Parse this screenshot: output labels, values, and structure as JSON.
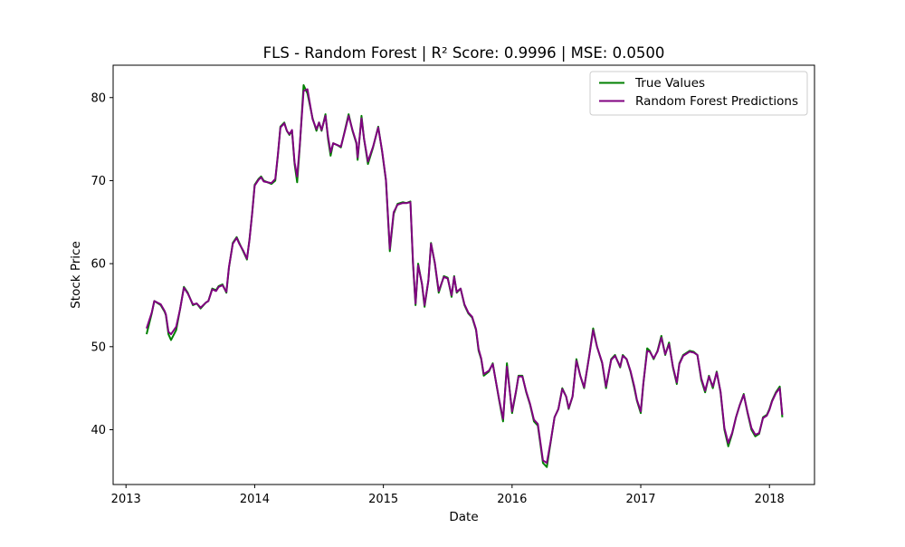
{
  "chart_data": {
    "type": "line",
    "title": "FLS - Random Forest | R² Score: 0.9996 | MSE: 0.0500",
    "xlabel": "Date",
    "ylabel": "Stock Price",
    "xlim": [
      2012.9,
      2018.35
    ],
    "ylim": [
      33.4,
      83.9
    ],
    "xticks": [
      2013,
      2014,
      2015,
      2016,
      2017,
      2018
    ],
    "xtick_labels": [
      "2013",
      "2014",
      "2015",
      "2016",
      "2017",
      "2018"
    ],
    "yticks": [
      40,
      50,
      60,
      70,
      80
    ],
    "ytick_labels": [
      "40",
      "50",
      "60",
      "70",
      "80"
    ],
    "grid": false,
    "legend_position": "top-right",
    "series": [
      {
        "name": "True Values",
        "color": "#008000",
        "x": [
          2013.16,
          2013.2,
          2013.22,
          2013.27,
          2013.3,
          2013.31,
          2013.33,
          2013.35,
          2013.39,
          2013.42,
          2013.45,
          2013.48,
          2013.52,
          2013.55,
          2013.58,
          2013.62,
          2013.64,
          2013.67,
          2013.7,
          2013.72,
          2013.75,
          2013.78,
          2013.8,
          2013.83,
          2013.86,
          2013.88,
          2013.91,
          2013.94,
          2013.96,
          2013.98,
          2014.0,
          2014.03,
          2014.05,
          2014.07,
          2014.1,
          2014.13,
          2014.16,
          2014.18,
          2014.2,
          2014.23,
          2014.25,
          2014.27,
          2014.29,
          2014.31,
          2014.33,
          2014.35,
          2014.38,
          2014.41,
          2014.45,
          2014.48,
          2014.5,
          2014.52,
          2014.55,
          2014.57,
          2014.59,
          2014.61,
          2014.64,
          2014.67,
          2014.7,
          2014.73,
          2014.76,
          2014.79,
          2014.8,
          2014.83,
          2014.85,
          2014.88,
          2014.92,
          2014.96,
          2014.99,
          2015.02,
          2015.05,
          2015.08,
          2015.11,
          2015.15,
          2015.18,
          2015.21,
          2015.23,
          2015.25,
          2015.27,
          2015.3,
          2015.32,
          2015.35,
          2015.37,
          2015.4,
          2015.43,
          2015.47,
          2015.5,
          2015.53,
          2015.55,
          2015.57,
          2015.6,
          2015.63,
          2015.66,
          2015.69,
          2015.72,
          2015.74,
          2015.76,
          2015.78,
          2015.82,
          2015.85,
          2015.9,
          2015.93,
          2015.96,
          2016.0,
          2016.03,
          2016.05,
          2016.08,
          2016.11,
          2016.14,
          2016.17,
          2016.2,
          2016.24,
          2016.27,
          2016.3,
          2016.33,
          2016.36,
          2016.39,
          2016.42,
          2016.44,
          2016.47,
          2016.5,
          2016.53,
          2016.56,
          2016.6,
          2016.63,
          2016.66,
          2016.7,
          2016.73,
          2016.77,
          2016.8,
          2016.84,
          2016.86,
          2016.89,
          2016.92,
          2016.95,
          2016.97,
          2017.0,
          2017.02,
          2017.05,
          2017.07,
          2017.1,
          2017.13,
          2017.16,
          2017.19,
          2017.22,
          2017.25,
          2017.28,
          2017.3,
          2017.33,
          2017.36,
          2017.38,
          2017.41,
          2017.44,
          2017.47,
          2017.5,
          2017.53,
          2017.56,
          2017.59,
          2017.62,
          2017.65,
          2017.68,
          2017.71,
          2017.74,
          2017.77,
          2017.8,
          2017.83,
          2017.86,
          2017.89,
          2017.92,
          2017.95,
          2017.98,
          2018.0,
          2018.02,
          2018.05,
          2018.08,
          2018.1
        ],
        "y": [
          51.5,
          54.0,
          55.5,
          55.0,
          54.2,
          53.8,
          51.5,
          50.8,
          52.0,
          54.5,
          57.2,
          56.5,
          55.0,
          55.2,
          54.6,
          55.3,
          55.5,
          57.0,
          56.8,
          57.3,
          57.5,
          56.5,
          59.5,
          62.5,
          63.2,
          62.5,
          61.5,
          60.5,
          63.0,
          66.0,
          69.5,
          70.2,
          70.5,
          70.0,
          69.8,
          69.6,
          70.0,
          73.0,
          76.5,
          77.0,
          76.0,
          75.5,
          76.0,
          72.0,
          69.8,
          74.0,
          81.5,
          80.5,
          77.5,
          76.0,
          77.0,
          76.0,
          78.0,
          75.0,
          73.0,
          74.5,
          74.3,
          74.0,
          76.0,
          78.0,
          76.0,
          74.5,
          72.5,
          77.8,
          75.0,
          72.0,
          74.0,
          76.5,
          73.5,
          70.0,
          61.5,
          66.0,
          67.2,
          67.4,
          67.3,
          67.5,
          60.0,
          55.0,
          60.0,
          57.5,
          54.8,
          58.0,
          62.5,
          60.0,
          56.5,
          58.5,
          58.3,
          56.0,
          58.5,
          56.5,
          57.0,
          55.0,
          54.0,
          53.5,
          52.0,
          49.5,
          48.5,
          46.5,
          47.0,
          48.0,
          43.5,
          41.0,
          48.0,
          42.0,
          44.5,
          46.5,
          46.5,
          44.5,
          43.0,
          41.0,
          40.5,
          36.0,
          35.5,
          38.5,
          41.5,
          42.5,
          45.0,
          44.0,
          42.5,
          44.0,
          48.5,
          46.5,
          45.0,
          49.0,
          52.2,
          50.0,
          48.0,
          45.0,
          48.5,
          49.0,
          47.5,
          49.0,
          48.5,
          47.0,
          45.0,
          43.5,
          42.0,
          45.5,
          49.8,
          49.5,
          48.5,
          49.5,
          51.3,
          49.0,
          50.5,
          47.5,
          45.5,
          48.0,
          49.0,
          49.3,
          49.5,
          49.4,
          49.0,
          46.0,
          44.5,
          46.5,
          45.0,
          47.0,
          44.5,
          40.0,
          38.0,
          39.5,
          41.5,
          43.0,
          44.3,
          42.0,
          40.0,
          39.2,
          39.5,
          41.5,
          41.8,
          42.5,
          43.5,
          44.5,
          45.2,
          41.5
        ]
      },
      {
        "name": "Random Forest Predictions",
        "color": "#800080",
        "x": [
          2013.16,
          2013.2,
          2013.22,
          2013.27,
          2013.3,
          2013.31,
          2013.33,
          2013.35,
          2013.39,
          2013.42,
          2013.45,
          2013.48,
          2013.52,
          2013.55,
          2013.58,
          2013.62,
          2013.64,
          2013.67,
          2013.7,
          2013.72,
          2013.75,
          2013.78,
          2013.8,
          2013.83,
          2013.86,
          2013.88,
          2013.91,
          2013.94,
          2013.96,
          2013.98,
          2014.0,
          2014.03,
          2014.05,
          2014.07,
          2014.1,
          2014.13,
          2014.16,
          2014.18,
          2014.2,
          2014.23,
          2014.25,
          2014.27,
          2014.29,
          2014.31,
          2014.33,
          2014.35,
          2014.38,
          2014.41,
          2014.45,
          2014.48,
          2014.5,
          2014.52,
          2014.55,
          2014.57,
          2014.59,
          2014.61,
          2014.64,
          2014.67,
          2014.7,
          2014.73,
          2014.76,
          2014.79,
          2014.8,
          2014.83,
          2014.85,
          2014.88,
          2014.92,
          2014.96,
          2014.99,
          2015.02,
          2015.05,
          2015.08,
          2015.11,
          2015.15,
          2015.18,
          2015.21,
          2015.23,
          2015.25,
          2015.27,
          2015.3,
          2015.32,
          2015.35,
          2015.37,
          2015.4,
          2015.43,
          2015.47,
          2015.5,
          2015.53,
          2015.55,
          2015.57,
          2015.6,
          2015.63,
          2015.66,
          2015.69,
          2015.72,
          2015.74,
          2015.76,
          2015.78,
          2015.82,
          2015.85,
          2015.9,
          2015.93,
          2015.96,
          2016.0,
          2016.03,
          2016.05,
          2016.08,
          2016.11,
          2016.14,
          2016.17,
          2016.2,
          2016.24,
          2016.27,
          2016.3,
          2016.33,
          2016.36,
          2016.39,
          2016.42,
          2016.44,
          2016.47,
          2016.5,
          2016.53,
          2016.56,
          2016.6,
          2016.63,
          2016.66,
          2016.7,
          2016.73,
          2016.77,
          2016.8,
          2016.84,
          2016.86,
          2016.89,
          2016.92,
          2016.95,
          2016.97,
          2017.0,
          2017.02,
          2017.05,
          2017.07,
          2017.1,
          2017.13,
          2017.16,
          2017.19,
          2017.22,
          2017.25,
          2017.28,
          2017.3,
          2017.33,
          2017.36,
          2017.38,
          2017.41,
          2017.44,
          2017.47,
          2017.5,
          2017.53,
          2017.56,
          2017.59,
          2017.62,
          2017.65,
          2017.68,
          2017.71,
          2017.74,
          2017.77,
          2017.8,
          2017.83,
          2017.86,
          2017.89,
          2017.92,
          2017.95,
          2017.98,
          2018.0,
          2018.02,
          2018.05,
          2018.08,
          2018.1
        ],
        "y": [
          52.2,
          54.1,
          55.5,
          55.1,
          54.3,
          53.9,
          51.8,
          51.5,
          52.4,
          54.5,
          57.1,
          56.4,
          55.1,
          55.2,
          54.7,
          55.3,
          55.5,
          56.9,
          56.7,
          57.2,
          57.4,
          56.6,
          59.6,
          62.4,
          63.1,
          62.4,
          61.6,
          60.6,
          62.9,
          66.0,
          69.4,
          70.1,
          70.4,
          69.9,
          69.8,
          69.7,
          70.2,
          73.1,
          76.4,
          76.9,
          76.0,
          75.6,
          76.1,
          72.2,
          70.5,
          74.2,
          80.8,
          81.0,
          77.4,
          76.2,
          77.0,
          76.1,
          77.8,
          75.3,
          73.4,
          74.5,
          74.3,
          74.1,
          75.9,
          77.8,
          76.1,
          74.6,
          72.8,
          77.5,
          75.0,
          72.3,
          74.1,
          76.4,
          73.6,
          70.1,
          61.8,
          66.2,
          67.1,
          67.3,
          67.3,
          67.4,
          60.2,
          55.2,
          59.8,
          57.6,
          55.0,
          58.0,
          62.4,
          60.1,
          56.7,
          58.4,
          58.2,
          56.2,
          58.4,
          56.6,
          57.0,
          55.1,
          54.1,
          53.6,
          52.1,
          49.7,
          48.6,
          46.7,
          47.1,
          47.9,
          43.6,
          41.3,
          47.6,
          42.2,
          44.6,
          46.4,
          46.4,
          44.6,
          43.1,
          41.2,
          40.7,
          36.3,
          36.0,
          38.6,
          41.5,
          42.5,
          44.9,
          44.0,
          42.6,
          44.0,
          48.3,
          46.5,
          45.1,
          48.9,
          52.0,
          50.0,
          48.1,
          45.2,
          48.4,
          48.9,
          47.6,
          48.9,
          48.5,
          47.1,
          45.2,
          43.6,
          42.2,
          45.6,
          49.5,
          49.4,
          48.6,
          49.4,
          51.1,
          49.1,
          50.3,
          47.6,
          45.7,
          47.9,
          48.9,
          49.2,
          49.4,
          49.3,
          49.0,
          46.2,
          44.7,
          46.4,
          45.2,
          46.9,
          44.6,
          40.2,
          38.4,
          39.6,
          41.5,
          43.0,
          44.2,
          42.1,
          40.2,
          39.4,
          39.6,
          41.4,
          41.7,
          42.4,
          43.4,
          44.4,
          45.0,
          41.8
        ]
      }
    ]
  }
}
